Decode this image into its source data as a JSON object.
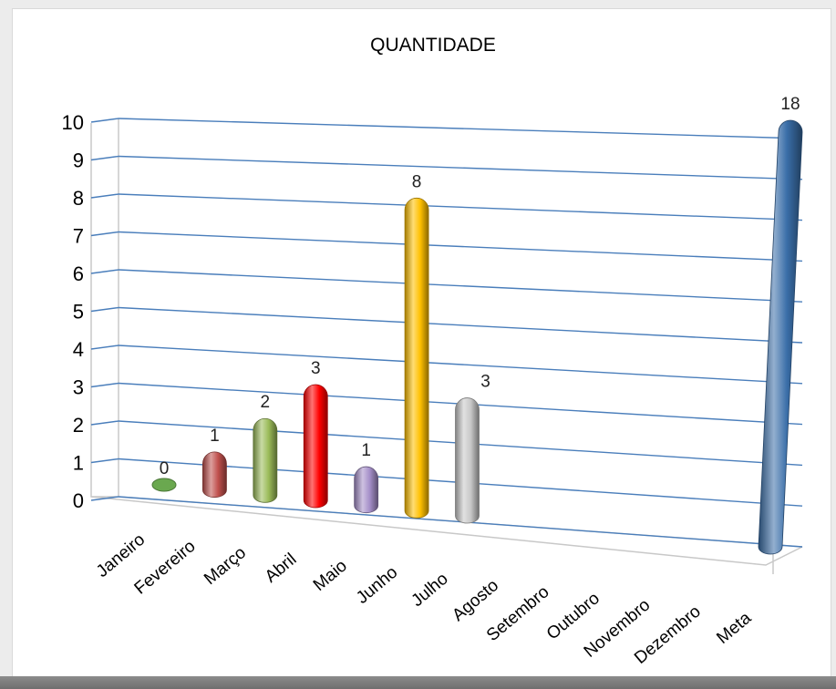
{
  "chart_data": {
    "type": "bar",
    "title": "QUANTIDADE",
    "categories": [
      "Janeiro",
      "Fevereiro",
      "Março",
      "Abril",
      "Maio",
      "Junho",
      "Julho",
      "Agosto",
      "Setembro",
      "Outubro",
      "Novembro",
      "Dezembro",
      "Meta"
    ],
    "values": [
      0,
      1,
      2,
      3,
      1,
      8,
      3,
      null,
      null,
      null,
      null,
      null,
      18
    ],
    "data_labels": [
      "0",
      "1",
      "2",
      "3",
      "1",
      "8",
      "3",
      "",
      "",
      "",
      "",
      "",
      "18"
    ],
    "colors": [
      "#6aa84f",
      "#c0504d",
      "#9bbb59",
      "#ff0000",
      "#a58fc9",
      "#ffc000",
      "#c8c8c8",
      "",
      "",
      "",
      "",
      "",
      "#3a6ea8"
    ],
    "yticks": [
      "0",
      "1",
      "2",
      "3",
      "4",
      "5",
      "6",
      "7",
      "8",
      "9",
      "10"
    ],
    "ylim": [
      0,
      10
    ],
    "grid": true,
    "legend": "none",
    "style": "3d-cylinder"
  }
}
